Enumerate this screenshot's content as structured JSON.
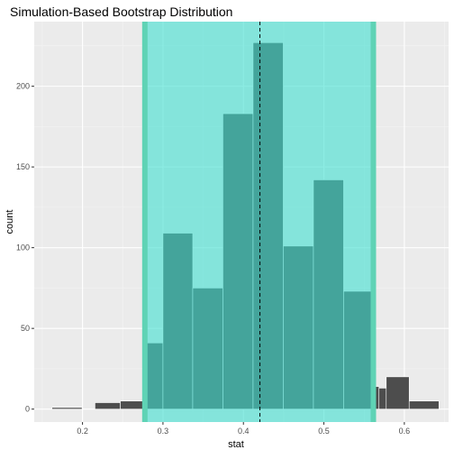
{
  "chart_data": {
    "type": "bar",
    "title": "Simulation-Based Bootstrap Distribution",
    "xlabel": "stat",
    "ylabel": "count",
    "xlim": [
      0.14,
      0.655
    ],
    "ylim": [
      -8,
      240
    ],
    "x_ticks": [
      0.2,
      0.3,
      0.4,
      0.5,
      0.6
    ],
    "y_ticks": [
      0,
      50,
      100,
      150,
      200
    ],
    "bin_width": 0.0375,
    "bars": [
      {
        "left": 0.162,
        "right": 0.1995,
        "count": 1
      },
      {
        "left": 0.1995,
        "right": 0.237,
        "count": 0
      },
      {
        "left": 0.2155,
        "right": 0.247,
        "count": 4
      },
      {
        "left": 0.247,
        "right": 0.2775,
        "count": 5
      },
      {
        "left": 0.2775,
        "right": 0.3,
        "count": 41
      },
      {
        "left": 0.3,
        "right": 0.337,
        "count": 109
      },
      {
        "left": 0.337,
        "right": 0.3745,
        "count": 75
      },
      {
        "left": 0.3745,
        "right": 0.412,
        "count": 183
      },
      {
        "left": 0.412,
        "right": 0.4495,
        "count": 227
      },
      {
        "left": 0.4495,
        "right": 0.487,
        "count": 101
      },
      {
        "left": 0.487,
        "right": 0.5245,
        "count": 142
      },
      {
        "left": 0.5245,
        "right": 0.562,
        "count": 73
      },
      {
        "left": 0.562,
        "right": 0.5685,
        "count": 14
      },
      {
        "left": 0.5685,
        "right": 0.5775,
        "count": 13
      },
      {
        "left": 0.5775,
        "right": 0.606,
        "count": 20
      },
      {
        "left": 0.606,
        "right": 0.643,
        "count": 5
      }
    ],
    "confidence_interval": [
      0.2775,
      0.5615
    ],
    "point_estimate": 0.4205,
    "colors": {
      "panel_background": "#ebebeb",
      "grid_major": "#ffffff",
      "grid_minor": "#f4f4f4",
      "bar_fill": "#4d4d4d",
      "bar_outline": "#ffffff",
      "ci_fill": "#40e0d0",
      "ci_fill_opacity": 0.6,
      "ci_edge": "#5fd3b5",
      "estimate_line": "#000000",
      "axis_text": "#4d4d4d",
      "title_text": "#000000"
    }
  }
}
